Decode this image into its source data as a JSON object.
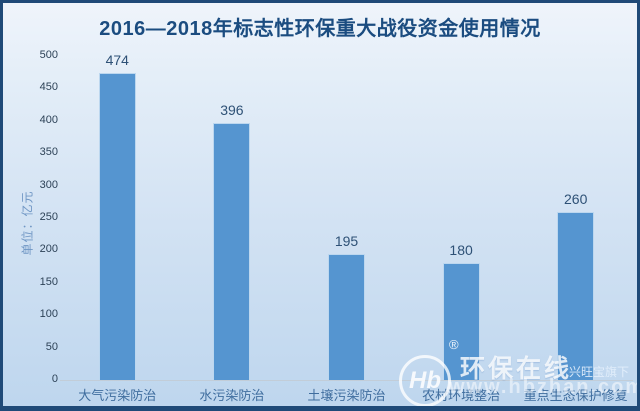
{
  "header": {
    "title": "2016—2018年标志性环保重大战役资金使用情况"
  },
  "chart_data": {
    "type": "bar",
    "title": "2016—2018年标志性环保重大战役资金使用情况",
    "categories": [
      "大气污染防治",
      "水污染防治",
      "土壤污染防治",
      "农村环境整治",
      "重点生态保护修复"
    ],
    "values": [
      474,
      396,
      195,
      180,
      260
    ],
    "xlabel": "",
    "ylabel": "单位：亿元",
    "ylim": [
      0,
      500
    ],
    "ytick_step": 50,
    "yticks": [
      0,
      50,
      100,
      150,
      200,
      250,
      300,
      350,
      400,
      450,
      500
    ],
    "grid": false,
    "legend": false,
    "value_labels_shown": true
  },
  "watermark": {
    "logo_monogram": "Hb",
    "registered_symbol": "®",
    "brand_name": "环保在线",
    "brand_tagline": "兴旺宝旗下",
    "website_url": "www.hbzhan.com"
  },
  "colors": {
    "frame_border": "#1f4a78",
    "title_text": "#1b4c80",
    "bar_fill": "#5595d0",
    "bar_edge": "#bcd7ef",
    "tick_text": "#2d4257",
    "category_text": "#3f6d9e",
    "unit_text": "#6f96c4",
    "axis_line": "#c2cdd8",
    "bg_top": "#eff4fb",
    "bg_bottom": "#bed6ee"
  }
}
